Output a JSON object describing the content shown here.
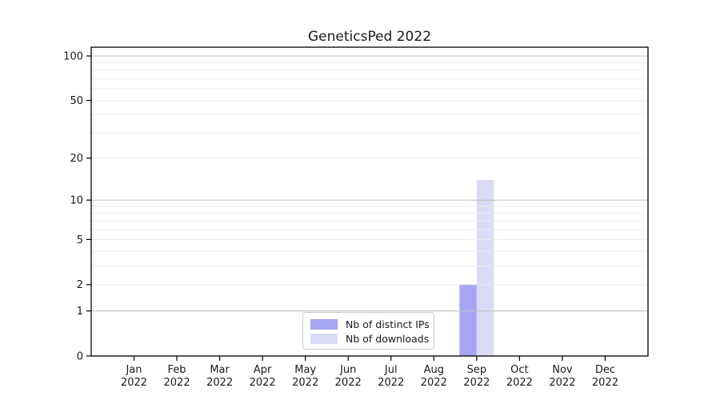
{
  "chart_data": {
    "type": "bar",
    "title": "GeneticsPed 2022",
    "categories": [
      "Jan 2022",
      "Feb 2022",
      "Mar 2022",
      "Apr 2022",
      "May 2022",
      "Jun 2022",
      "Jul 2022",
      "Aug 2022",
      "Sep 2022",
      "Oct 2022",
      "Nov 2022",
      "Dec 2022"
    ],
    "series": [
      {
        "name": "Nb of distinct IPs",
        "color": "#a5a5f2",
        "values": [
          0,
          0,
          0,
          0,
          0,
          0,
          0,
          0,
          2,
          0,
          0,
          0
        ]
      },
      {
        "name": "Nb of downloads",
        "color": "#dbdbf8",
        "values": [
          0,
          0,
          0,
          0,
          0,
          0,
          0,
          0,
          14,
          0,
          0,
          0
        ]
      }
    ],
    "yticks": [
      0,
      1,
      2,
      5,
      10,
      20,
      50,
      100
    ],
    "minor_gridlines": [
      2,
      3,
      4,
      5,
      6,
      7,
      8,
      9,
      20,
      30,
      40,
      50,
      60,
      70,
      80,
      90
    ],
    "major_gridlines": [
      1,
      10,
      100
    ],
    "scale": "log1p",
    "ylim": [
      0,
      116
    ],
    "grid": "horizontal",
    "legend_position": "inside-bottom-center",
    "colors": {
      "axis": "#000000",
      "text": "#1a1a1a",
      "major_grid": "#c2c2c2",
      "minor_grid": "#ececec"
    }
  }
}
